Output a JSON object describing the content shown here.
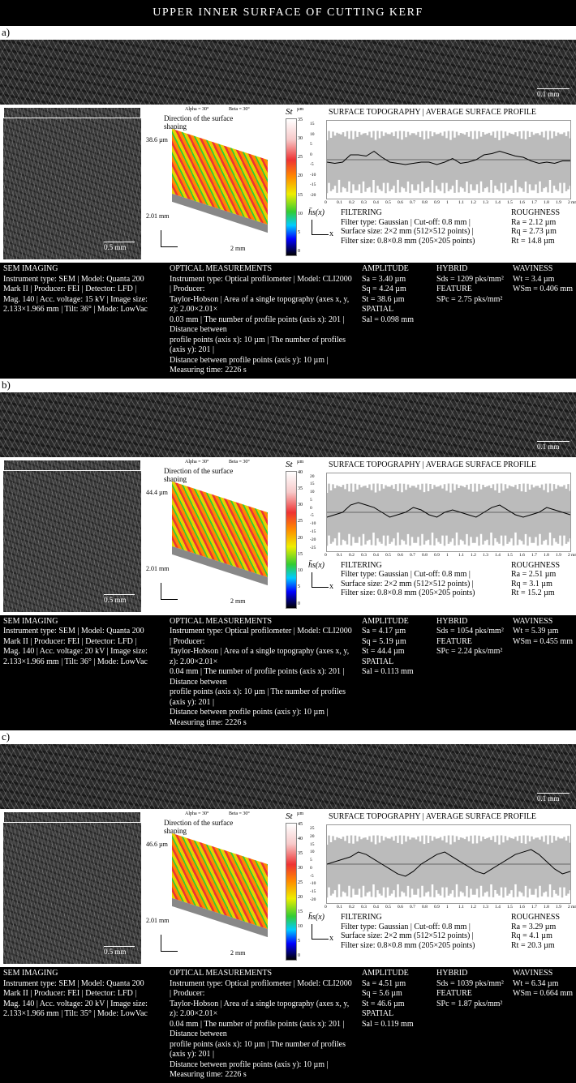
{
  "title": "UPPER INNER SURFACE OF CUTTING KERF",
  "common": {
    "scale_strip": "0.1 mm",
    "scale_sem": "0.5 mm",
    "direction": "Direction of the surface shaping",
    "alpha": "Alpha = 30°",
    "beta": "Beta = 30°",
    "y_len": "2.01 mm",
    "x_len": "2 mm",
    "st": "St",
    "um": "µm",
    "chart_title": "SURFACE TOPOGRAPHY | AVERAGE SURFACE PROFILE",
    "h_axis": "h̄s(x)",
    "x_axis": "x",
    "x_unit": "mm",
    "x_ticks": [
      "0",
      "0.1",
      "0.2",
      "0.3",
      "0.4",
      "0.5",
      "0.6",
      "0.7",
      "0.8",
      "0.9",
      "1",
      "1.1",
      "1.2",
      "1.3",
      "1.4",
      "1.5",
      "1.6",
      "1.7",
      "1.8",
      "1.9",
      "2 mm"
    ],
    "filtering": "FILTERING",
    "filter1": "Filter type: Gaussian | Cut-off: 0.8 mm |",
    "filter2": "Surface size: 2×2 mm (512×512 points) |",
    "filter3": "Filter size: 0.8×0.8 mm (205×205 points)",
    "roughness": "ROUGHNESS",
    "sem_h": "SEM IMAGING",
    "opt_h": "OPTICAL MEASUREMENTS",
    "amp_h": "AMPLITUDE",
    "hyb_h": "HYBRID",
    "feat_h": "FEATURE",
    "spat_h": "SPATIAL",
    "wav_h": "WAVINESS",
    "opt_last": "Distance between profile points (axis y): 10 µm | Measuring time: 2226 s"
  },
  "panels": [
    {
      "label": "a)",
      "height_label": "38.6 µm",
      "cbar_ticks": [
        "35",
        "30",
        "25",
        "20",
        "15",
        "10",
        "5",
        "0"
      ],
      "y_ticks": [
        "15",
        "10",
        "5",
        "0",
        "-5",
        "-10",
        "-15",
        "-20"
      ],
      "sem": [
        "Instrument type: SEM | Model: Quanta 200",
        "Mark II | Producer: FEI | Detector: LFD |",
        "Mag. 140 | Acc. voltage: 15 kV | Image size:",
        "2.133×1.966 mm | Tilt: 36° | Mode: LowVac"
      ],
      "opt": [
        "Instrument type: Optical profilometer | Model: CLI2000 | Producer:",
        "Taylor-Hobson | Area of a single topography (axes x, y, z): 2.00×2.01×",
        "0.03 mm | The number of profile points (axis x): 201 | Distance between",
        "profile points (axis x): 10 µm | The number of profiles (axis y): 201 |"
      ],
      "Sa": "Sa = 3.40 µm",
      "Sq": "Sq = 4.24 µm",
      "St": "St = 38.6 µm",
      "Sal": "Sal = 0.098 mm",
      "Sds": "Sds = 1209 pks/mm²",
      "SPc": "SPc = 2.75 pks/mm²",
      "Wt": "Wt = 3.4 µm",
      "WSm": "WSm = 0.406 mm",
      "Ra": "Ra = 2.12 µm",
      "Rq": "Rq = 2.73 µm",
      "Rt": "Rt = 14.8 µm",
      "profile": [
        -1,
        -1.5,
        -1,
        2,
        2,
        1.5,
        3.5,
        1,
        -1,
        -1.5,
        -2,
        -1.5,
        -1,
        -1,
        -2,
        -1,
        0.5,
        -1.5,
        -1,
        0,
        2,
        2.5,
        3.5,
        2.5,
        1.5,
        1,
        -0.5,
        -1.5,
        -1,
        -1.5,
        -0.5,
        -0.5
      ]
    },
    {
      "label": "b)",
      "height_label": "44.4 µm",
      "cbar_ticks": [
        "40",
        "35",
        "30",
        "25",
        "20",
        "15",
        "10",
        "5",
        "0"
      ],
      "y_ticks": [
        "20",
        "15",
        "10",
        "5",
        "0",
        "-5",
        "-10",
        "-15",
        "-20",
        "-25"
      ],
      "sem": [
        "Instrument type: SEM | Model: Quanta 200",
        "Mark II | Producer: FEI | Detector: LFD |",
        "Mag. 140 | Acc. voltage: 20 kV | Image size:",
        "2.133×1.966 mm | Tilt: 36° | Mode: LowVac"
      ],
      "opt": [
        "Instrument type: Optical profilometer | Model: CLI2000 | Producer:",
        "Taylor-Hobson | Area of a single topography (axes x, y, z): 2.00×2.01×",
        "0.04 mm | The number of profile points (axis x): 201 | Distance between",
        "profile points (axis x): 10 µm | The number of profiles (axis y): 201 |"
      ],
      "Sa": "Sa = 4.17 µm",
      "Sq": "Sq = 5.19 µm",
      "St": "St = 44.4 µm",
      "Sal": "Sal = 0.113 mm",
      "Sds": "Sds = 1054 pks/mm²",
      "SPc": "SPc = 2.24 pks/mm²",
      "Wt": "Wt = 5.39 µm",
      "WSm": "WSm = 0.455 mm",
      "Ra": "Ra = 2.51 µm",
      "Rq": "Rq = 3.1 µm",
      "Rt": "Rt = 15.2 µm",
      "profile": [
        -2,
        -1,
        0,
        3,
        4,
        3,
        2,
        0,
        -2,
        -1,
        0,
        2,
        1,
        -1,
        -2,
        0,
        1,
        0,
        -1,
        -2,
        0,
        2,
        3,
        1,
        -1,
        -2,
        -1,
        0,
        2,
        1,
        0,
        -1
      ]
    },
    {
      "label": "c)",
      "height_label": "46.6 µm",
      "cbar_ticks": [
        "45",
        "40",
        "35",
        "30",
        "25",
        "20",
        "15",
        "10",
        "5",
        "0"
      ],
      "y_ticks": [
        "25",
        "20",
        "15",
        "10",
        "5",
        "0",
        "-5",
        "-10",
        "-15",
        "-20"
      ],
      "sem": [
        "Instrument type: SEM | Model: Quanta 200",
        "Mark II | Producer: FEI | Detector: LFD |",
        "Mag. 140 | Acc. voltage: 20 kV | Image size:",
        "2.133×1.966 mm | Tilt: 35° | Mode: LowVac"
      ],
      "opt": [
        "Instrument type: Optical profilometer | Model: CLI2000 | Producer:",
        "Taylor-Hobson | Area of a single topography (axes x, y, z): 2.00×2.01×",
        "0.04 mm | The number of profile points (axis x): 201 | Distance between",
        "profile points (axis x): 10 µm | The number of profiles (axis y): 201 |"
      ],
      "Sa": "Sa = 4.51 µm",
      "Sq": "Sq = 5.6 µm",
      "St": "St = 46.6 µm",
      "Sal": "Sal = 0.119 mm",
      "Sds": "Sds = 1039 pks/mm²",
      "SPc": "SPc = 1.87 pks/mm²",
      "Wt": "Wt = 6.34 µm",
      "WSm": "WSm = 0.664 mm",
      "Ra": "Ra = 3.29 µm",
      "Rq": "Rq = 4.1 µm",
      "Rt": "Rt = 20.3 µm",
      "profile": [
        0,
        1,
        2,
        3,
        5,
        4,
        2,
        0,
        -2,
        -4,
        -5,
        -3,
        0,
        2,
        4,
        5,
        3,
        1,
        -1,
        -3,
        -4,
        -2,
        0,
        2,
        4,
        5,
        6,
        4,
        1,
        -2,
        -4,
        -3
      ]
    }
  ]
}
